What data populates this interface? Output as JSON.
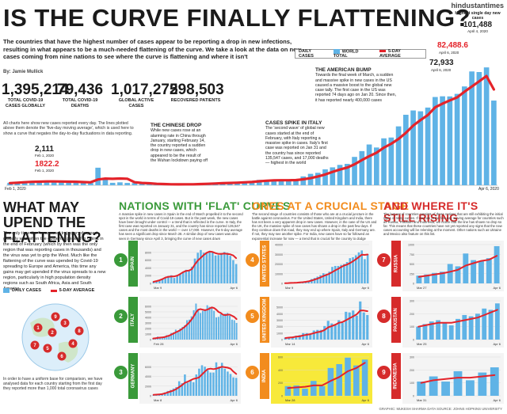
{
  "brand": "hindustantimes",
  "headline": "IS THE CURVE FINALLY FLATTENING?",
  "deck": "The countries that have the highest number of cases appear to be reporting a drop in new infections, resulting in what appears to be a much-needed flattening of the curve. We take a look at the data on new cases coming from nine nations to see where the curve is flattening and where it isn't",
  "byline": "By: Jamie Mullick",
  "stats": [
    {
      "value": "1,395,214",
      "label": "TOTAL COVID-19 CASES GLOBALLY"
    },
    {
      "value": "79,436",
      "label": "TOTAL COVID-19 DEATHS"
    },
    {
      "value": "1,017,275",
      "label": "GLOBAL ACTIVE CASES"
    },
    {
      "value": "298,503",
      "label": "RECOVERED PATIENTS"
    }
  ],
  "note": "All charts here show new cases reported every day. The lines plotted above them denote the 'five-day moving average', which is used here to show a curve that negates the day-to-day fluctuations in data reporting.",
  "legend": {
    "daily": "DAILY CASES",
    "world": "WORLD TOTAL",
    "avg": "5-DAY AVERAGE"
  },
  "colors": {
    "bar": "#5fb3e6",
    "line": "#e4232a",
    "green": "#3a9a3a",
    "orange": "#f28c1e",
    "red": "#d62b2b",
    "yellow": "#f7e93a"
  },
  "annotations": {
    "chinese_title": "THE CHINESE DROP",
    "chinese_text": "While new cases rose at an alarming rate in China through January, starting February 14, the country reported a sudden drop in new cases, which appeared to be the result of the Wuhan lockdown paying off",
    "italy_title": "CASES SPIKE IN ITALY",
    "italy_text": "The 'second wave' of global new cases started at the end of February, with Italy reporting a massive spike in cases. Italy's first case was reported on Jan 31 and the country has since reported 135,547 cases, and 17,000 deaths — highest in the world",
    "american_title": "THE AMERICAN BUMP",
    "american_text": "Towards the final week of March, a sudden and massive spike in new cases in the US caused a massive boost to the global new case tally. The first case in the US was reported 74 days ago on Jan 20. Since then, it has reported nearly 400,000 cases",
    "highest_label": "Highest single day new cases",
    "highest_value": "101,488",
    "highest_date": "April 4, 2020",
    "v1_value": "2,111",
    "v1_date": "Feb 1, 2020",
    "v2_value": "1822.2",
    "v2_date": "Feb 1, 2020",
    "v3_value": "82,488.6",
    "v3_date": "April 6, 2020",
    "v4_value": "72,933",
    "v4_date": "April 6, 2020",
    "x_start": "Feb 1, 2020",
    "x_end": "Apr 6, 2020"
  },
  "side": {
    "title": "WHAT MAY UPEND THE FLATTENING?",
    "text": "The only time the \"new case\" trajectory dropped globally was when the epidemic peaked in China in the end of February (which by then was the only region that was reporting cases in thousands) and the virus was yet to grip the West. Much like the flattening of the curve was upended by Covid-19 spreading to Europe and America, this time any gains may get upended if the virus spreads to a new region, particularly in high population density regions such as South Africa, Asia and South America.",
    "footnote": "In order to have a uniform base for comparison, we have analysed data for each country starting from the first day they reported more than 1,000 total coronavirus cases"
  },
  "sections": [
    {
      "title": "NATIONS WITH 'FLAT' CURVES",
      "text": "A massive spike in new cases in Spain in the end of March propelled it to the second spot in the world in terms of Covid-19 cases. But in the past week, the new cases have been brought under control — a trend that is reflected in the curve. In Italy, the first case was reported on January 31, and the country has since reported 135,547 cases and the most deaths in the world — over 17,000. However, the 5-day average has seen a significant drop since March 28. A similar drop of new cases was also seen in Germany since April 3, bringing the curve of new cases down"
    },
    {
      "title": "ONES AT A CRUCIAL STAGE",
      "text": "The second stage of countries consists of those who are at a crucial juncture in the battle against coronavirus. For the United States, United Kingdom and India, there has not been a very apparent drop in new cases. However, in the case of the US and the UK, the massive spike of new cases has shown a drop in the past few days. If they continue down this road, they may end up where Spain, Italy and Germany are. If not, they may see another spike. For India, new cases have so far followed an exponential increase for now — a trend that is crucial for the country to dodge"
    },
    {
      "title": "AND WHERE IT'S STILL RISING",
      "text": "The last set of countries consists of those nations that are still exhibiting the initial signs of rising curves. If we look at the five-day moving average for countries such as Russia, Pakistan and Indonesia, we notice that the line has shown no drop so far. This means that these countries have not yet reported any signs that the new cases accounting will be relenting at the moment. Other nations such as Ukraine and Mexico also feature on this list."
    }
  ],
  "credit": "GRAPHIC: MUKESH SHARMA DATA SOURCE: JOHNS HOPKINS UNIVERSITY",
  "chart_data": [
    {
      "type": "bar",
      "title": "World total",
      "x_range": [
        "Feb 1, 2020",
        "Apr 6, 2020"
      ],
      "series": [
        {
          "name": "WORLD TOTAL",
          "values": [
            2111,
            2600,
            2800,
            3200,
            3700,
            3800,
            3200,
            2700,
            3000,
            2600,
            2200,
            2000,
            15100,
            6400,
            2100,
            2500,
            2000,
            1900,
            1600,
            600,
            1000,
            600,
            900,
            700,
            900,
            1000,
            1300,
            1700,
            2000,
            2000,
            1800,
            2500,
            2700,
            3200,
            4600,
            4600,
            3800,
            4000,
            4300,
            4800,
            7600,
            9800,
            10700,
            13700,
            15400,
            17500,
            18400,
            24400,
            29400,
            35100,
            32500,
            40400,
            41100,
            50700,
            60700,
            64400,
            63700,
            66900,
            76000,
            76600,
            76500,
            78700,
            85100,
            98000,
            97500,
            101488,
            72933
          ]
        },
        {
          "name": "5-DAY AVERAGE",
          "values": [
            1822.2,
            2200,
            2600,
            2900,
            3100,
            3300,
            3300,
            3200,
            3100,
            3000,
            2700,
            2500,
            5000,
            5700,
            5500,
            5800,
            5600,
            2600,
            2000,
            1700,
            1200,
            1000,
            800,
            750,
            800,
            850,
            1000,
            1200,
            1500,
            1800,
            2000,
            2200,
            2500,
            2800,
            3400,
            3900,
            4200,
            4300,
            4300,
            4400,
            5100,
            6100,
            7600,
            9300,
            11500,
            13500,
            15200,
            18100,
            21700,
            25000,
            28000,
            32400,
            35700,
            39900,
            45100,
            51400,
            56100,
            60500,
            67100,
            70300,
            73100,
            75700,
            80600,
            85000,
            89500,
            94000,
            82488.6
          ]
        }
      ]
    },
    {
      "type": "bar",
      "title": "SPAIN",
      "x_range": [
        "Mar 9",
        "Apr 6"
      ],
      "ylim": [
        0,
        10000
      ],
      "ticks": [
        0,
        2000,
        4000,
        6000,
        8000
      ],
      "series": [
        {
          "name": "DAILY CASES",
          "values": [
            500,
            600,
            800,
            1200,
            1500,
            1900,
            2100,
            1400,
            1900,
            2500,
            2900,
            3500,
            3200,
            4300,
            6400,
            7900,
            8600,
            7900,
            7800,
            8200,
            8000,
            7200,
            7300,
            7800,
            8100,
            7900,
            7100,
            6000,
            5000
          ]
        },
        {
          "name": "5-DAY AVERAGE",
          "values": [
            400,
            600,
            800,
            1100,
            1500,
            1700,
            1800,
            1800,
            2000,
            2400,
            2900,
            3200,
            3300,
            3700,
            4900,
            5900,
            6600,
            7300,
            7900,
            8200,
            8100,
            7800,
            7600,
            7600,
            7700,
            7600,
            7500,
            7200,
            6500
          ]
        }
      ]
    },
    {
      "type": "bar",
      "title": "ITALY",
      "x_range": [
        "Feb 28",
        "Apr 6"
      ],
      "ylim": [
        0,
        7000
      ],
      "ticks": [
        0,
        1000,
        2000,
        3000,
        4000,
        5000,
        6000
      ],
      "series": [
        {
          "name": "DAILY CASES",
          "values": [
            250,
            250,
            550,
            350,
            450,
            600,
            800,
            800,
            1200,
            1300,
            1800,
            1500,
            2000,
            2300,
            2600,
            3500,
            3600,
            4200,
            5300,
            6500,
            5500,
            4800,
            5200,
            5300,
            6200,
            5900,
            5900,
            5200,
            4000,
            4100,
            4600,
            4500,
            4700,
            4800,
            4300,
            3600,
            3500,
            3000
          ]
        },
        {
          "name": "5-DAY AVERAGE",
          "values": [
            200,
            250,
            300,
            350,
            400,
            450,
            600,
            700,
            900,
            1100,
            1300,
            1500,
            1700,
            2000,
            2300,
            2700,
            3100,
            3600,
            4200,
            4900,
            5400,
            5500,
            5400,
            5300,
            5400,
            5600,
            5800,
            5700,
            5400,
            5000,
            4800,
            4500,
            4400,
            4500,
            4500,
            4300,
            4100,
            3700
          ]
        }
      ]
    },
    {
      "type": "bar",
      "title": "GERMANY",
      "x_range": [
        "Mar 8",
        "Apr 6"
      ],
      "ylim": [
        0,
        8000
      ],
      "ticks": [
        0,
        2000,
        4000,
        6000
      ],
      "series": [
        {
          "name": "DAILY CASES",
          "values": [
            200,
            300,
            300,
            400,
            700,
            1000,
            1200,
            1500,
            1800,
            3000,
            2600,
            4400,
            2700,
            3200,
            2800,
            4400,
            5600,
            6300,
            6000,
            5300,
            4800,
            4800,
            6900,
            6000,
            6800,
            5600,
            5000,
            4500,
            3800,
            3700
          ]
        },
        {
          "name": "5-DAY AVERAGE",
          "values": [
            200,
            250,
            300,
            350,
            500,
            700,
            900,
            1100,
            1400,
            1800,
            2200,
            2700,
            2900,
            3200,
            3500,
            3600,
            3800,
            4400,
            5000,
            5500,
            5600,
            5500,
            5600,
            5800,
            6000,
            5900,
            5800,
            5600,
            5000,
            4500
          ]
        }
      ]
    },
    {
      "type": "bar",
      "title": "UNITED STATES",
      "x_range": [
        "Mar 9",
        "Apr 6"
      ],
      "ylim": [
        0,
        40000
      ],
      "ticks": [
        0,
        10000,
        20000,
        30000,
        40000
      ],
      "series": [
        {
          "name": "DAILY CASES",
          "values": [
            300,
            400,
            500,
            700,
            900,
            1200,
            1500,
            1900,
            2800,
            4500,
            5600,
            7000,
            8500,
            10500,
            10000,
            12000,
            17000,
            18000,
            18000,
            19000,
            20000,
            22000,
            26000,
            27000,
            29000,
            32000,
            34000,
            25000,
            30000
          ]
        },
        {
          "name": "5-DAY AVERAGE",
          "values": [
            250,
            350,
            450,
            600,
            750,
            950,
            1200,
            1600,
            2100,
            2900,
            3900,
            5000,
            6200,
            7600,
            8700,
            10000,
            11600,
            13500,
            15000,
            16800,
            18400,
            19400,
            21000,
            22800,
            24800,
            27200,
            29600,
            29400,
            29800
          ]
        }
      ]
    },
    {
      "type": "bar",
      "title": "UNITED KINGDOM",
      "x_range": [
        "Mar 14",
        "Apr 6"
      ],
      "ylim": [
        0,
        6000
      ],
      "ticks": [
        0,
        1000,
        2000,
        3000,
        4000,
        5000
      ],
      "series": [
        {
          "name": "DAILY CASES",
          "values": [
            300,
            400,
            400,
            600,
            700,
            1000,
            1000,
            900,
            1400,
            1500,
            1500,
            2100,
            2900,
            2500,
            2400,
            3000,
            2600,
            4300,
            4200,
            4500,
            3700,
            5900,
            4200,
            3800
          ]
        },
        {
          "name": "5-DAY AVERAGE",
          "values": [
            250,
            300,
            350,
            450,
            500,
            650,
            750,
            850,
            1000,
            1150,
            1250,
            1500,
            1900,
            2100,
            2300,
            2600,
            2700,
            3000,
            3300,
            3600,
            3900,
            4500,
            4500,
            4400
          ]
        }
      ]
    },
    {
      "type": "bar",
      "title": "INDIA",
      "x_range": [
        "Mar 28",
        "Apr 6"
      ],
      "ylim": [
        0,
        600
      ],
      "ticks": [
        0,
        200,
        400,
        600
      ],
      "series": [
        {
          "name": "DAILY CASES",
          "values": [
            150,
            160,
            110,
            230,
            150,
            430,
            490,
            590,
            470,
            560
          ]
        },
        {
          "name": "5-DAY AVERAGE",
          "values": [
            120,
            130,
            140,
            160,
            160,
            230,
            290,
            380,
            430,
            510
          ]
        }
      ]
    },
    {
      "type": "bar",
      "title": "RUSSIA",
      "x_range": [
        "Mar 27",
        "Apr 6"
      ],
      "ylim": [
        0,
        1000
      ],
      "ticks": [
        0,
        250,
        500,
        750,
        1000
      ],
      "series": [
        {
          "name": "DAILY CASES",
          "values": [
            200,
            230,
            270,
            300,
            500,
            440,
            770,
            600,
            580,
            650,
            960
          ]
        },
        {
          "name": "5-DAY AVERAGE",
          "values": [
            170,
            200,
            230,
            260,
            300,
            350,
            460,
            520,
            580,
            610,
            710
          ]
        }
      ]
    },
    {
      "type": "bar",
      "title": "PAKISTAN",
      "x_range": [
        "Mar 25",
        "Apr 6"
      ],
      "ylim": [
        0,
        300
      ],
      "ticks": [
        0,
        100,
        200,
        300
      ],
      "series": [
        {
          "name": "DAILY CASES",
          "values": [
            100,
            120,
            140,
            150,
            130,
            110,
            160,
            190,
            180,
            200,
            240,
            230,
            280
          ]
        },
        {
          "name": "5-DAY AVERAGE",
          "values": [
            100,
            110,
            120,
            130,
            130,
            130,
            140,
            150,
            160,
            170,
            190,
            210,
            230
          ]
        }
      ]
    },
    {
      "type": "bar",
      "title": "INDONESIA",
      "x_range": [
        "Mar 31",
        "Apr 6"
      ],
      "ylim": [
        0,
        300
      ],
      "ticks": [
        0,
        100,
        200,
        300
      ],
      "series": [
        {
          "name": "DAILY CASES",
          "values": [
            110,
            150,
            110,
            190,
            120,
            180,
            220
          ]
        },
        {
          "name": "5-DAY AVERAGE",
          "values": [
            100,
            120,
            130,
            140,
            140,
            150,
            160
          ]
        }
      ]
    }
  ]
}
